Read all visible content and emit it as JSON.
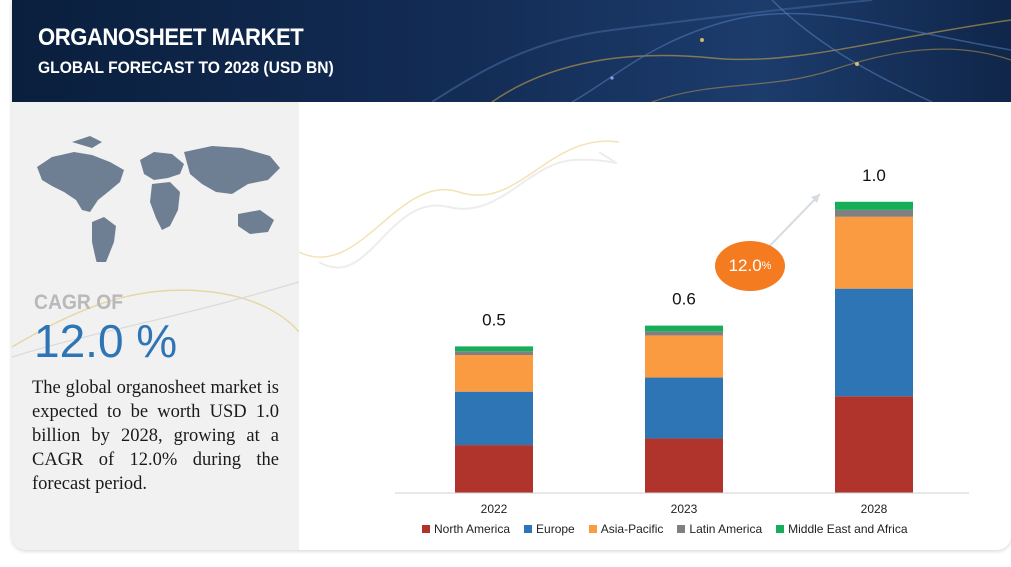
{
  "header": {
    "title": "ORGANOSHEET MARKET",
    "subtitle": "GLOBAL FORECAST TO 2028 (USD BN)"
  },
  "summary": {
    "cagr_label": "CAGR OF",
    "cagr_value": "12.0 %",
    "description": "The global organosheet market is expected to be worth USD 1.0 billion by 2028, growing at a CAGR of 12.0% during the forecast period."
  },
  "growth_bubble": {
    "value": "12.0",
    "unit": "%"
  },
  "chart_data": {
    "type": "bar",
    "stacked": true,
    "categories": [
      "2022",
      "2023",
      "2028"
    ],
    "totals": [
      "0.5",
      "0.6",
      "1.0"
    ],
    "series": [
      {
        "name": "North America",
        "color": "#b0342b",
        "values": [
          0.166,
          0.189,
          0.335
        ]
      },
      {
        "name": "Europe",
        "color": "#2e75b6",
        "values": [
          0.185,
          0.211,
          0.373
        ]
      },
      {
        "name": "Asia-Pacific",
        "color": "#fa9a41",
        "values": [
          0.127,
          0.146,
          0.249
        ]
      },
      {
        "name": "Latin America",
        "color": "#808080",
        "values": [
          0.013,
          0.014,
          0.024
        ]
      },
      {
        "name": "Middle East and Africa",
        "color": "#16ae59",
        "values": [
          0.017,
          0.02,
          0.028
        ]
      }
    ],
    "ylim": [
      0,
      1.23
    ],
    "grid": false,
    "legend_position": "bottom"
  }
}
